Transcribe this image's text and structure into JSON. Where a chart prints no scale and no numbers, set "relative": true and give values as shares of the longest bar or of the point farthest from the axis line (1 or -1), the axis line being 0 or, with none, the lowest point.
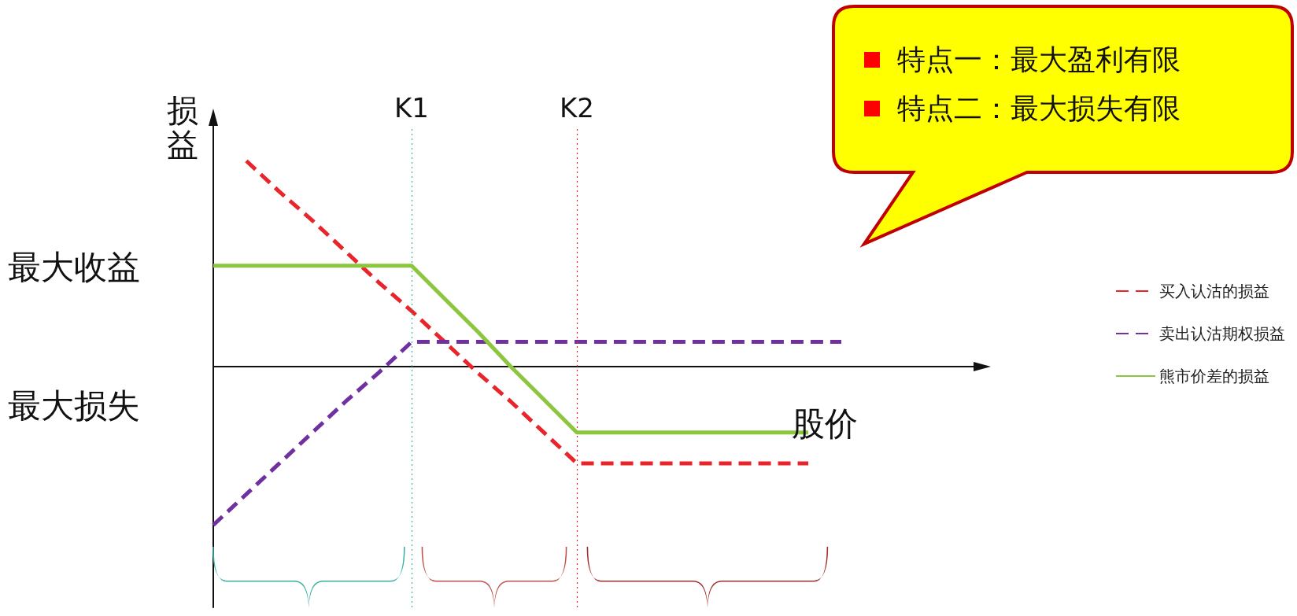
{
  "chart_data": {
    "type": "line",
    "relative": true,
    "xlabel": "股价",
    "ylabel": "损益",
    "categories": [
      null,
      null,
      null,
      null,
      null,
      null,
      "K1",
      null,
      null,
      null,
      null,
      "K2",
      null,
      null,
      null,
      null,
      null,
      null,
      null,
      null,
      null,
      null,
      null,
      null
    ],
    "series": [
      {
        "name": "买入认沽的损益",
        "color": "#e8252b",
        "line_style": "dashed",
        "values": [
          null,
          1.0,
          0.85,
          0.71,
          0.56,
          0.41,
          0.27,
          0.12,
          -0.03,
          -0.17,
          -0.32,
          -0.47,
          -0.47,
          -0.47,
          -0.47,
          -0.47,
          -0.47,
          -0.47,
          -0.47,
          null,
          null,
          null,
          null,
          null
        ]
      },
      {
        "name": "卖出认沽期权损益",
        "color": "#7030a0",
        "line_style": "dashed",
        "values": [
          -0.77,
          -0.62,
          -0.47,
          -0.32,
          -0.17,
          -0.03,
          0.12,
          0.12,
          0.12,
          0.12,
          0.12,
          0.12,
          0.12,
          0.12,
          0.12,
          0.12,
          0.12,
          0.12,
          0.12,
          0.12,
          null,
          null,
          null,
          null
        ]
      },
      {
        "name": "熊市价差的损益",
        "color": "#8cc63f",
        "line_style": "solid",
        "values": [
          0.49,
          0.49,
          0.49,
          0.49,
          0.49,
          0.49,
          0.49,
          0.33,
          0.17,
          0.0,
          -0.16,
          -0.32,
          -0.32,
          -0.32,
          -0.32,
          -0.32,
          -0.32,
          -0.32,
          -0.32,
          null,
          null,
          null,
          null,
          null
        ]
      }
    ],
    "ref_lines": [
      {
        "axis": "x",
        "value": "K1",
        "color": "#3cb0a0",
        "line_style": "dotted"
      },
      {
        "axis": "x",
        "value": "K2",
        "color": "#e8252b",
        "line_style": "dotted"
      }
    ],
    "annotations": [
      "最大收益",
      "最大损失",
      "特点一：最大盈利有限",
      "特点二：最大损失有限"
    ],
    "legend": "right",
    "grid": false,
    "marker": "none"
  }
}
